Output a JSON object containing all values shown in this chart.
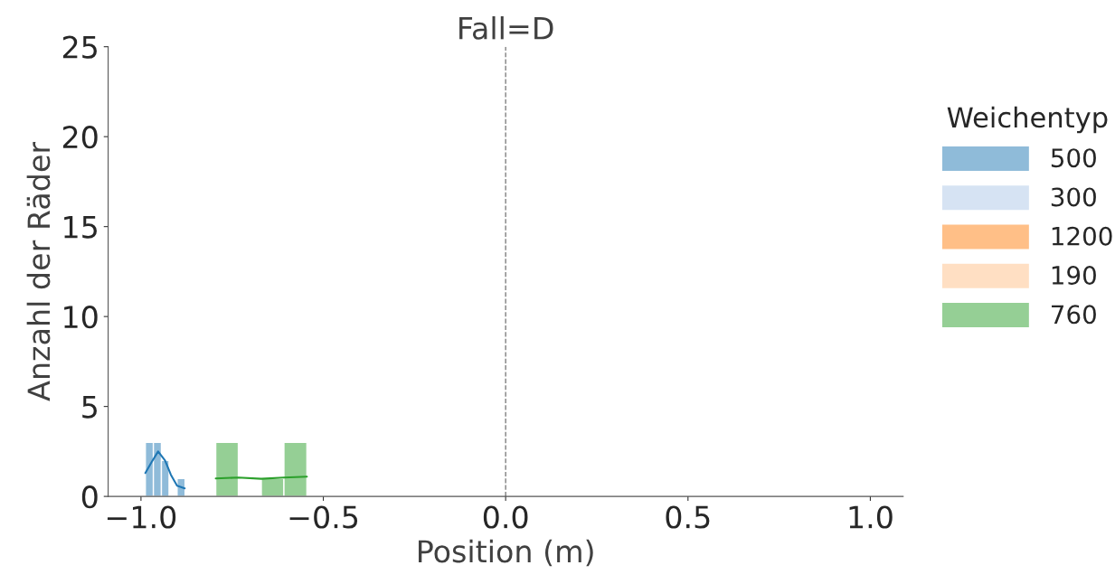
{
  "chart_data": {
    "type": "histogram",
    "title": "Fall=D",
    "xlabel": "Position (m)",
    "ylabel": "Anzahl der Räder",
    "legend_title": "Weichentyp",
    "series": [
      {
        "name": "500",
        "color": "#8fbbd9",
        "bins": [
          -0.988,
          -0.966,
          -0.944,
          -0.923,
          -0.901,
          -0.879
        ],
        "values": [
          3,
          3,
          2,
          null,
          1
        ]
      },
      {
        "name": "300",
        "color": "#d6e3f3"
      },
      {
        "name": "1200",
        "color": "#ffbf87"
      },
      {
        "name": "190",
        "color": "#ffdfc3"
      },
      {
        "name": "760",
        "color": "#95cf95",
        "bins": [
          -0.795,
          -0.733,
          -0.67,
          -0.608,
          -0.545
        ],
        "values": [
          3,
          null,
          1,
          3
        ]
      },
      {
        "type": "line",
        "color": "#1f77b4",
        "x": [
          -0.988,
          -0.971,
          -0.953,
          -0.934,
          -0.918,
          -0.901,
          -0.88
        ],
        "values": [
          1.3,
          1.9,
          2.5,
          2.0,
          1.2,
          0.6,
          0.45
        ]
      },
      {
        "type": "line",
        "color": "#2ca02c",
        "x": [
          -0.795,
          -0.733,
          -0.67,
          -0.608,
          -0.545
        ],
        "values": [
          1.0,
          1.05,
          0.98,
          1.05,
          1.1
        ]
      }
    ],
    "ref_lines": [
      {
        "axis": "x",
        "value": 0,
        "color": "#808080",
        "line_style": "dashed"
      }
    ],
    "xlim": [
      -1.09,
      1.09
    ],
    "xticks": [
      {
        "value": -1.0,
        "label": "−1.0"
      },
      {
        "value": -0.5,
        "label": "−0.5"
      },
      {
        "value": 0.0,
        "label": "0.0"
      },
      {
        "value": 0.5,
        "label": "0.5"
      },
      {
        "value": 1.0,
        "label": "1.0"
      }
    ],
    "ylim": [
      0,
      25
    ],
    "yticks": [
      0,
      5,
      10,
      15,
      20,
      25
    ],
    "grid": false,
    "legend": "right"
  }
}
